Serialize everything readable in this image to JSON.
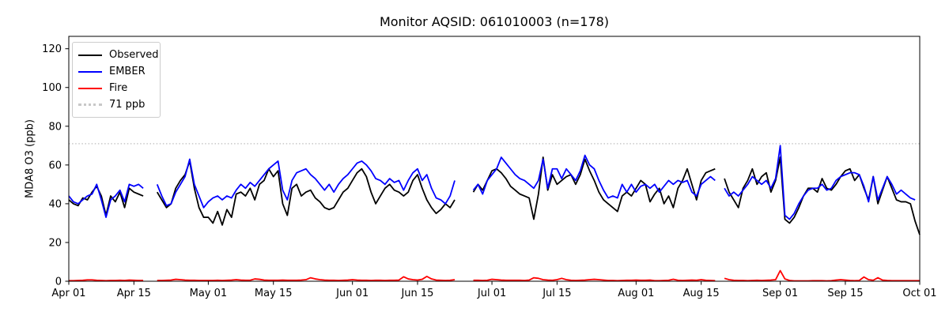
{
  "title": "Monitor AQSID: 061010003 (n=178)",
  "axes": {
    "y_label": "MDA8 O3 (ppb)",
    "y_ticks": [
      0,
      20,
      40,
      60,
      80,
      100,
      120
    ],
    "x_tick_labels": [
      "Apr 01",
      "Apr 15",
      "May 01",
      "May 15",
      "Jun 01",
      "Jun 15",
      "Jul 01",
      "Jul 15",
      "Aug 01",
      "Aug 15",
      "Sep 01",
      "Sep 15",
      "Oct 01"
    ],
    "x_tick_indices": [
      0,
      14,
      30,
      44,
      61,
      75,
      91,
      105,
      122,
      136,
      153,
      167,
      183
    ]
  },
  "legend": {
    "items": [
      {
        "label": "Observed",
        "color": "#000000",
        "style": "solid"
      },
      {
        "label": "EMBER",
        "color": "#0000ff",
        "style": "solid"
      },
      {
        "label": "Fire",
        "color": "#ff0000",
        "style": "solid"
      },
      {
        "label": "71 ppb",
        "color": "#c8c8c8",
        "style": "dotted"
      }
    ]
  },
  "chart_data": {
    "type": "line",
    "title": "Monitor AQSID: 061010003 (n=178)",
    "xlabel": "",
    "ylabel": "MDA8 O3 (ppb)",
    "ylim": [
      0,
      126.4
    ],
    "x_unit": "daily dates, Apr 01 through Oct 01 (184 days, 178 non-missing)",
    "n_points": 178,
    "missing_dates": [
      "Apr 18",
      "Apr 19",
      "Jun 24",
      "Jun 25",
      "Jun 26",
      "Aug 19"
    ],
    "months": [
      {
        "name": "Apr",
        "days": 30
      },
      {
        "name": "May",
        "days": 31
      },
      {
        "name": "Jun",
        "days": 30
      },
      {
        "name": "Jul",
        "days": 31
      },
      {
        "name": "Aug",
        "days": 31
      },
      {
        "name": "Sep",
        "days": 30
      },
      {
        "name": "Oct",
        "days": 1
      }
    ],
    "threshold": {
      "label": "71 ppb",
      "value": 71,
      "color": "#c8c8c8",
      "style": "dotted"
    },
    "legend_position": "upper left",
    "grid": false,
    "series": [
      {
        "name": "Observed",
        "color": "#000000",
        "values": [
          42,
          40,
          39,
          43,
          42,
          46,
          49,
          44,
          34,
          44,
          41,
          46,
          38,
          48,
          46,
          45,
          44,
          null,
          null,
          46,
          42,
          38,
          40,
          48,
          52,
          55,
          62,
          48,
          38,
          33,
          33,
          30,
          36,
          29,
          37,
          33,
          45,
          46,
          44,
          48,
          42,
          50,
          52,
          58,
          54,
          57,
          40,
          34,
          48,
          50,
          44,
          46,
          47,
          43,
          41,
          38,
          37,
          38,
          42,
          46,
          48,
          52,
          56,
          58,
          54,
          46,
          40,
          44,
          48,
          50,
          47,
          46,
          44,
          46,
          52,
          55,
          48,
          42,
          38,
          35,
          37,
          40,
          38,
          42,
          null,
          null,
          null,
          46,
          50,
          47,
          52,
          57,
          58,
          56,
          53,
          49,
          47,
          45,
          44,
          43,
          32,
          45,
          64,
          47,
          55,
          50,
          52,
          54,
          55,
          50,
          55,
          63,
          57,
          52,
          46,
          42,
          40,
          38,
          36,
          44,
          46,
          44,
          48,
          52,
          50,
          41,
          45,
          48,
          40,
          44,
          38,
          48,
          52,
          58,
          50,
          42,
          52,
          56,
          57,
          58,
          null,
          53,
          46,
          42,
          38,
          48,
          52,
          58,
          50,
          54,
          56,
          46,
          52,
          64,
          32,
          30,
          33,
          38,
          44,
          48,
          48,
          46,
          53,
          48,
          47,
          50,
          54,
          57,
          58,
          52,
          55,
          48,
          42,
          54,
          40,
          47,
          54,
          48,
          42,
          41,
          41,
          40,
          31,
          24
        ]
      },
      {
        "name": "EMBER",
        "color": "#0000ff",
        "values": [
          44,
          41,
          40,
          42,
          44,
          45,
          50,
          42,
          33,
          42,
          44,
          47,
          41,
          50,
          49,
          50,
          48,
          null,
          null,
          50,
          44,
          39,
          40,
          46,
          50,
          54,
          63,
          50,
          44,
          38,
          41,
          43,
          44,
          42,
          44,
          43,
          47,
          50,
          48,
          51,
          49,
          52,
          55,
          58,
          60,
          62,
          47,
          42,
          52,
          56,
          57,
          58,
          55,
          53,
          50,
          47,
          50,
          46,
          50,
          53,
          55,
          58,
          61,
          62,
          60,
          57,
          53,
          52,
          50,
          53,
          51,
          52,
          47,
          52,
          56,
          58,
          52,
          55,
          48,
          43,
          42,
          40,
          44,
          52,
          null,
          null,
          null,
          47,
          50,
          45,
          52,
          55,
          58,
          64,
          61,
          58,
          55,
          53,
          52,
          50,
          48,
          52,
          63,
          48,
          58,
          58,
          53,
          58,
          55,
          52,
          57,
          65,
          60,
          58,
          52,
          47,
          43,
          44,
          43,
          50,
          46,
          50,
          46,
          49,
          50,
          48,
          50,
          46,
          49,
          52,
          50,
          52,
          51,
          52,
          46,
          44,
          50,
          52,
          54,
          52,
          null,
          48,
          44,
          46,
          44,
          47,
          50,
          54,
          52,
          50,
          52,
          48,
          53,
          70,
          34,
          32,
          35,
          40,
          44,
          47,
          48,
          48,
          50,
          47,
          48,
          52,
          54,
          55,
          56,
          56,
          55,
          49,
          41,
          54,
          42,
          48,
          54,
          50,
          45,
          47,
          45,
          43,
          42,
          null
        ]
      },
      {
        "name": "Fire",
        "color": "#ff0000",
        "values": [
          0.3,
          0.3,
          0.4,
          0.5,
          0.7,
          0.7,
          0.5,
          0.4,
          0.3,
          0.4,
          0.4,
          0.5,
          0.4,
          0.6,
          0.5,
          0.4,
          0.4,
          null,
          null,
          0.4,
          0.4,
          0.5,
          0.6,
          1.0,
          0.8,
          0.6,
          0.5,
          0.5,
          0.4,
          0.4,
          0.4,
          0.4,
          0.5,
          0.4,
          0.5,
          0.6,
          0.8,
          0.6,
          0.5,
          0.5,
          1.2,
          1.0,
          0.6,
          0.5,
          0.5,
          0.5,
          0.6,
          0.5,
          0.5,
          0.5,
          0.6,
          0.8,
          1.8,
          1.2,
          0.8,
          0.6,
          0.5,
          0.5,
          0.4,
          0.5,
          0.6,
          0.8,
          0.6,
          0.5,
          0.5,
          0.4,
          0.5,
          0.5,
          0.4,
          0.5,
          0.5,
          0.6,
          2.3,
          1.2,
          0.8,
          0.6,
          1.0,
          2.5,
          1.2,
          0.6,
          0.5,
          0.4,
          0.5,
          0.8,
          null,
          null,
          null,
          0.5,
          0.5,
          0.4,
          0.5,
          1.0,
          0.8,
          0.6,
          0.5,
          0.5,
          0.5,
          0.5,
          0.4,
          0.6,
          1.8,
          1.5,
          0.8,
          0.6,
          0.5,
          0.8,
          1.5,
          0.8,
          0.5,
          0.4,
          0.5,
          0.6,
          0.8,
          1.0,
          0.8,
          0.6,
          0.4,
          0.4,
          0.3,
          0.4,
          0.5,
          0.5,
          0.6,
          0.5,
          0.5,
          0.6,
          0.3,
          0.3,
          0.4,
          0.5,
          1.0,
          0.5,
          0.4,
          0.5,
          0.6,
          0.5,
          0.8,
          0.5,
          0.4,
          0.3,
          null,
          1.5,
          0.8,
          0.5,
          0.4,
          0.4,
          0.3,
          0.4,
          0.5,
          0.4,
          0.5,
          0.6,
          0.8,
          5.5,
          1.2,
          0.4,
          0.2,
          0.2,
          0.2,
          0.2,
          0.3,
          0.3,
          0.3,
          0.2,
          0.3,
          0.6,
          0.8,
          0.6,
          0.4,
          0.3,
          0.4,
          2.2,
          0.8,
          0.5,
          1.8,
          0.6,
          0.4,
          0.3,
          0.3,
          0.3,
          0.3,
          0.3,
          0.3,
          0.3
        ]
      }
    ]
  }
}
